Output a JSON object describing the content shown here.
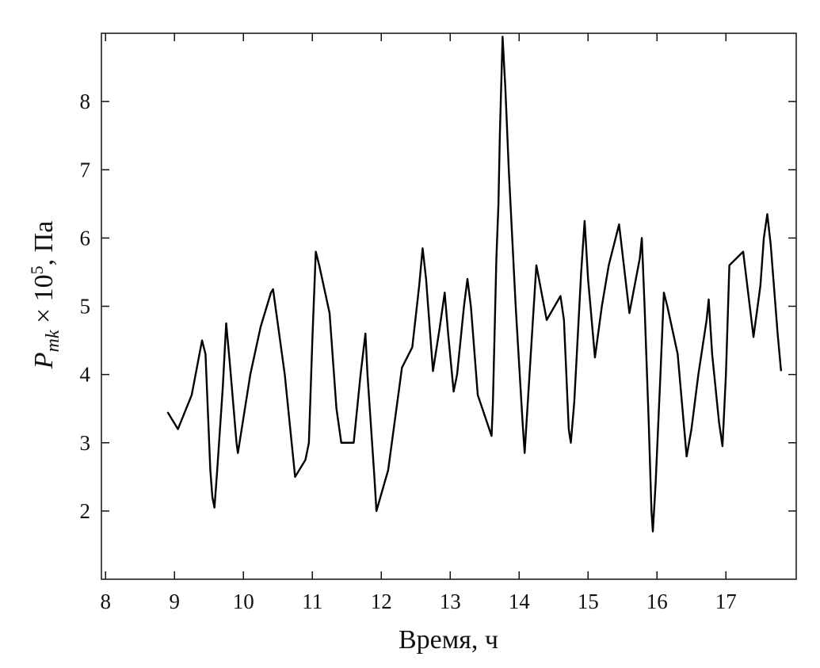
{
  "chart_data": {
    "type": "line",
    "xlabel": "Время, ч",
    "ylabel": {
      "main": "P",
      "sub": "mk",
      "mid": " × 10",
      "sup": "5",
      "tail": ", Па"
    },
    "xlim": [
      7.94,
      18.02
    ],
    "ylim": [
      1.0,
      9.0
    ],
    "xticks": [
      8,
      9,
      10,
      11,
      12,
      13,
      14,
      15,
      16,
      17
    ],
    "yticks": [
      2,
      3,
      4,
      5,
      6,
      7,
      8
    ],
    "color": "#000000",
    "x": [
      8.9,
      9.05,
      9.25,
      9.4,
      9.45,
      9.52,
      9.55,
      9.58,
      9.62,
      9.7,
      9.75,
      9.8,
      9.9,
      9.92,
      10.1,
      10.25,
      10.4,
      10.43,
      10.6,
      10.75,
      10.9,
      10.95,
      11.0,
      11.05,
      11.1,
      11.25,
      11.35,
      11.42,
      11.6,
      11.7,
      11.77,
      11.8,
      11.9,
      11.93,
      12.1,
      12.3,
      12.45,
      12.55,
      12.6,
      12.65,
      12.75,
      12.85,
      12.92,
      12.97,
      13.05,
      13.1,
      13.2,
      13.25,
      13.3,
      13.4,
      13.6,
      13.62,
      13.67,
      13.7,
      13.72,
      13.76,
      13.8,
      13.85,
      13.95,
      14.05,
      14.08,
      14.12,
      14.2,
      14.25,
      14.4,
      14.6,
      14.65,
      14.72,
      14.75,
      14.8,
      14.9,
      14.95,
      15.0,
      15.1,
      15.2,
      15.3,
      15.45,
      15.6,
      15.75,
      15.78,
      15.82,
      15.88,
      15.92,
      15.94,
      15.98,
      16.05,
      16.1,
      16.15,
      16.3,
      16.43,
      16.5,
      16.6,
      16.72,
      16.75,
      16.8,
      16.9,
      16.95,
      17.0,
      17.05,
      17.2,
      17.25,
      17.4,
      17.5,
      17.55,
      17.6,
      17.65,
      17.75,
      17.8
    ],
    "values": [
      3.45,
      3.2,
      3.7,
      4.5,
      4.3,
      2.6,
      2.2,
      2.05,
      2.6,
      3.8,
      4.75,
      4.2,
      3.0,
      2.85,
      4.0,
      4.7,
      5.2,
      5.25,
      4.0,
      2.5,
      2.75,
      3.0,
      4.5,
      5.8,
      5.6,
      4.9,
      3.5,
      3.0,
      3.0,
      4.0,
      4.6,
      4.0,
      2.5,
      2.0,
      2.6,
      4.1,
      4.4,
      5.3,
      5.85,
      5.4,
      4.05,
      4.7,
      5.2,
      4.6,
      3.75,
      4.0,
      5.0,
      5.4,
      5.0,
      3.7,
      3.1,
      3.6,
      5.7,
      6.5,
      7.5,
      8.95,
      8.2,
      7.0,
      5.0,
      3.3,
      2.85,
      3.5,
      4.8,
      5.6,
      4.8,
      5.15,
      4.8,
      3.2,
      3.0,
      3.6,
      5.5,
      6.25,
      5.4,
      4.25,
      5.0,
      5.6,
      6.2,
      4.9,
      5.7,
      6.0,
      5.0,
      3.3,
      2.0,
      1.7,
      2.4,
      4.0,
      5.2,
      5.0,
      4.3,
      2.8,
      3.2,
      4.0,
      4.8,
      5.1,
      4.3,
      3.3,
      2.95,
      4.0,
      5.6,
      5.75,
      5.8,
      4.55,
      5.3,
      6.0,
      6.35,
      5.9,
      4.6,
      4.05
    ]
  }
}
